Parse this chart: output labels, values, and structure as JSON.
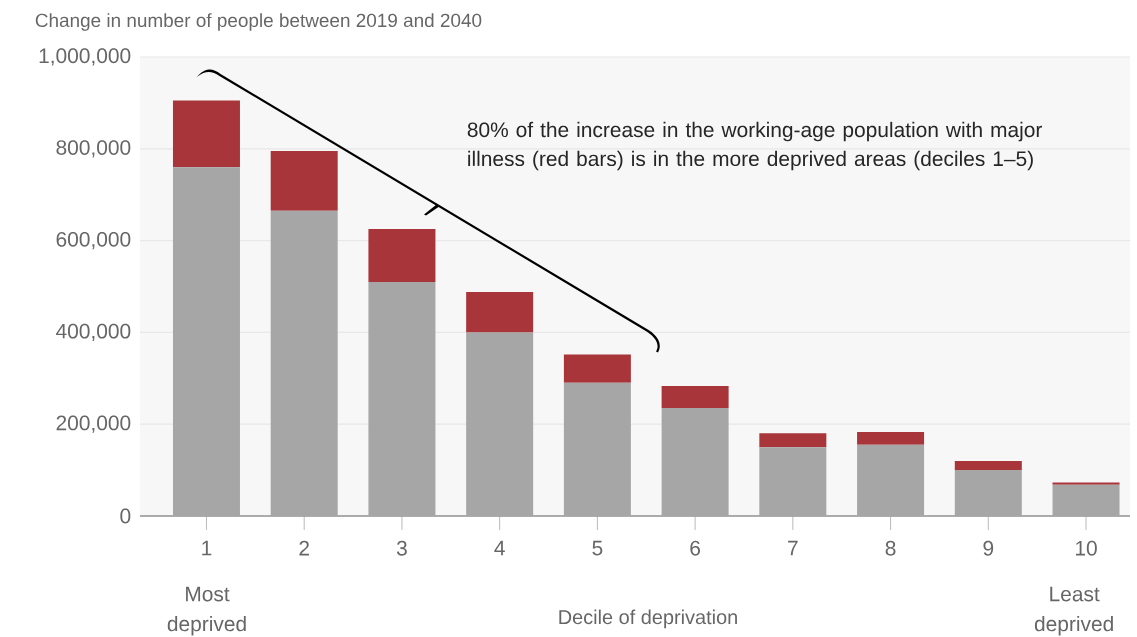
{
  "chart_data": {
    "type": "bar",
    "ylabel": "Change in number of people between 2019 and 2040",
    "xlabel": "Decile of deprivation",
    "categories": [
      "1",
      "2",
      "3",
      "4",
      "5",
      "6",
      "7",
      "8",
      "9",
      "10"
    ],
    "stacked": true,
    "series": [
      {
        "color": "#a6a6a6",
        "values": [
          760000,
          665000,
          510000,
          400000,
          290000,
          235000,
          150000,
          155000,
          100000,
          68000
        ]
      },
      {
        "color": "#a8353a",
        "values": [
          145000,
          130000,
          115000,
          88000,
          62000,
          48000,
          30000,
          28000,
          20000,
          5000
        ]
      }
    ],
    "ylim": [
      0,
      1000000
    ],
    "yticks": [
      {
        "value": 0,
        "label": "0"
      },
      {
        "value": 200000,
        "label": "200,000"
      },
      {
        "value": 400000,
        "label": "400,000"
      },
      {
        "value": 600000,
        "label": "600,000"
      },
      {
        "value": 800000,
        "label": "800,000"
      },
      {
        "value": 1000000,
        "label": "1,000,000"
      }
    ],
    "grid": "y",
    "annotations": [
      "80% of the increase in the working-age population with major illness (red bars) is in the more deprived areas (deciles 1–5)",
      "Most deprived",
      "Least deprived"
    ]
  }
}
